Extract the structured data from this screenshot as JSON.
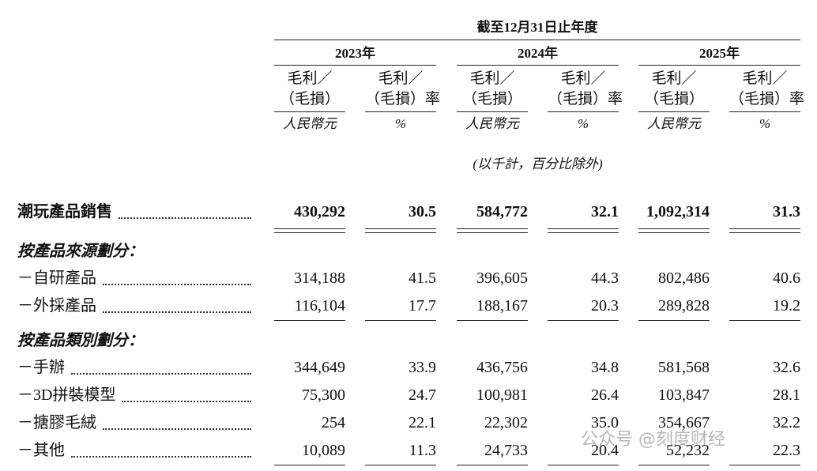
{
  "header": {
    "title": "截至12月31日止年度",
    "years": [
      "2023年",
      "2024年",
      "2025年"
    ],
    "columns": [
      {
        "lines": [
          "毛利／",
          "（毛損）"
        ],
        "unit": "人民幣元"
      },
      {
        "lines": [
          "毛利／",
          "（毛損）率"
        ],
        "unit": "%"
      },
      {
        "lines": [
          "毛利／",
          "（毛損）"
        ],
        "unit": "人民幣元"
      },
      {
        "lines": [
          "毛利／",
          "（毛損）率"
        ],
        "unit": "%"
      },
      {
        "lines": [
          "毛利／",
          "（毛損）"
        ],
        "unit": "人民幣元"
      },
      {
        "lines": [
          "毛利／",
          "（毛損）率"
        ],
        "unit": "%"
      }
    ],
    "note": "(以千計，百分比除外)"
  },
  "main": {
    "label": "潮玩產品銷售",
    "values": [
      "430,292",
      "30.5",
      "584,772",
      "32.1",
      "1,092,314",
      "31.3"
    ]
  },
  "sections": [
    {
      "title": "按產品來源劃分：",
      "rows": [
        {
          "label": "－自研產品",
          "values": [
            "314,188",
            "41.5",
            "396,605",
            "44.3",
            "802,486",
            "40.6"
          ]
        },
        {
          "label": "－外採產品",
          "values": [
            "116,104",
            "17.7",
            "188,167",
            "20.3",
            "289,828",
            "19.2"
          ]
        }
      ]
    },
    {
      "title": "按產品類別劃分：",
      "rows": [
        {
          "label": "－手辦",
          "values": [
            "344,649",
            "33.9",
            "436,756",
            "34.8",
            "581,568",
            "32.6"
          ]
        },
        {
          "label": "－3D拼裝模型",
          "values": [
            "75,300",
            "24.7",
            "100,981",
            "26.4",
            "103,847",
            "28.1"
          ]
        },
        {
          "label": "－搪膠毛絨",
          "values": [
            "254",
            "22.1",
            "22,302",
            "35.0",
            "354,667",
            "32.2"
          ]
        },
        {
          "label": "－其他",
          "values": [
            "10,089",
            "11.3",
            "24,733",
            "20.4",
            "52,232",
            "22.3"
          ]
        }
      ]
    }
  ],
  "watermark": "公众号 @刻度财经"
}
